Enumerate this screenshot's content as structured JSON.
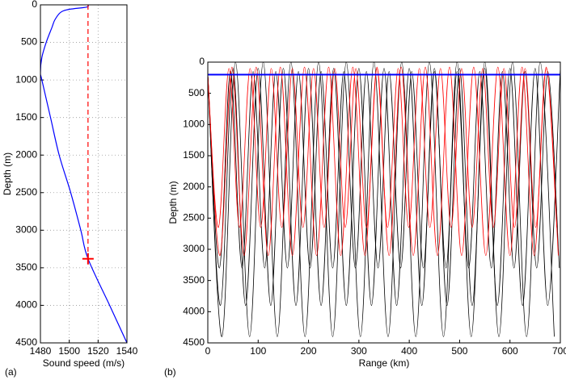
{
  "chart_data": [
    {
      "type": "line",
      "label": "(a)",
      "x_label": "Sound speed (m/s)",
      "y_label": "Depth (m)",
      "xlim": [
        1480,
        1540
      ],
      "xticks": [
        1480,
        1500,
        1520,
        1540
      ],
      "ylim": [
        0,
        4500
      ],
      "yticks": [
        0,
        500,
        1000,
        1500,
        2000,
        2500,
        3000,
        3500,
        4000,
        4500
      ],
      "y_inverted": true,
      "grid": true,
      "series": [
        {
          "color": "#0000ff",
          "x": [
            1513,
            1512,
            1500,
            1494,
            1490,
            1488,
            1484,
            1481,
            1480,
            1481,
            1487,
            1493,
            1501,
            1508,
            1513,
            1528,
            1540
          ],
          "values": [
            0,
            30,
            60,
            100,
            200,
            300,
            500,
            700,
            900,
            1000,
            1500,
            2000,
            2500,
            3000,
            3380,
            4000,
            4500
          ]
        },
        {
          "color": "#ff0000",
          "dash": true,
          "x": [
            1513,
            1513
          ],
          "values": [
            0,
            3380
          ]
        },
        {
          "color": "#ff0000",
          "marker": "plus",
          "x": [
            1513
          ],
          "values": [
            3380
          ]
        }
      ]
    },
    {
      "type": "line",
      "label": "(b)",
      "x_label": "Range (km)",
      "y_label": "Depth (m)",
      "xlim": [
        0,
        700
      ],
      "xticks": [
        0,
        100,
        200,
        300,
        400,
        500,
        600,
        700
      ],
      "ylim": [
        0,
        4500
      ],
      "yticks": [
        0,
        500,
        1000,
        1500,
        2000,
        2500,
        3000,
        3500,
        4000,
        4500
      ],
      "y_inverted": true,
      "grid": false,
      "series": [
        {
          "color": "#000000",
          "x": [
            0,
            28,
            55,
            83,
            110,
            138,
            165,
            193,
            220,
            248,
            275,
            303,
            330,
            358,
            385,
            413,
            440,
            468,
            495,
            523,
            550,
            578,
            605,
            633,
            660,
            688
          ],
          "values": [
            200,
            4400,
            0,
            4400,
            0,
            4400,
            0,
            4400,
            0,
            4400,
            0,
            4400,
            0,
            4400,
            0,
            4400,
            0,
            4400,
            0,
            4400,
            0,
            4400,
            0,
            4400,
            0,
            4400
          ]
        },
        {
          "color": "#000000",
          "x": [
            0,
            25,
            50,
            75,
            100,
            125,
            150,
            175,
            200,
            225,
            250,
            275,
            300,
            325,
            350,
            375,
            400,
            425,
            450,
            475,
            500,
            525,
            550,
            575,
            600,
            625,
            650,
            675,
            700
          ],
          "values": [
            200,
            3900,
            100,
            3900,
            100,
            3900,
            100,
            3900,
            100,
            3900,
            100,
            3900,
            100,
            3900,
            100,
            3900,
            100,
            3900,
            100,
            3900,
            100,
            3900,
            100,
            3900,
            100,
            3900,
            100,
            3900,
            100
          ]
        },
        {
          "color": "#000000",
          "x": [
            0,
            23,
            45,
            68,
            90,
            113,
            135,
            158,
            180,
            203,
            225,
            248,
            270,
            293,
            315,
            338,
            360,
            383,
            405,
            428,
            450,
            473,
            495,
            518,
            540,
            563,
            585,
            608,
            630,
            653,
            675,
            698
          ],
          "values": [
            200,
            3300,
            150,
            3300,
            150,
            3300,
            150,
            3300,
            150,
            3300,
            150,
            3300,
            150,
            3300,
            150,
            3300,
            150,
            3300,
            150,
            3300,
            150,
            3300,
            150,
            3300,
            150,
            3300,
            150,
            3300,
            150,
            3300,
            150,
            3300
          ]
        },
        {
          "color": "#ff0000",
          "x": [
            0,
            21,
            42,
            63,
            84,
            105,
            126,
            147,
            168,
            189,
            210,
            231,
            252,
            273,
            294,
            315,
            336,
            357,
            378,
            399,
            420,
            441,
            462,
            483,
            504,
            525,
            546,
            567,
            588,
            609,
            630,
            651,
            672,
            693
          ],
          "values": [
            200,
            2650,
            100,
            2650,
            100,
            2650,
            100,
            2650,
            100,
            2650,
            100,
            2650,
            100,
            2650,
            100,
            2650,
            100,
            2650,
            100,
            2650,
            100,
            2650,
            100,
            2650,
            100,
            2650,
            100,
            2650,
            100,
            2650,
            100,
            2650,
            100,
            2650
          ]
        },
        {
          "color": "#ff0000",
          "x": [
            0,
            24,
            48,
            72,
            96,
            120,
            144,
            168,
            192,
            216,
            240,
            264,
            288,
            312,
            336,
            360,
            384,
            408,
            432,
            456,
            480,
            504,
            528,
            552,
            576,
            600,
            624,
            648,
            672,
            696
          ],
          "values": [
            200,
            3100,
            80,
            3100,
            80,
            3100,
            80,
            3100,
            80,
            3100,
            80,
            3100,
            80,
            3100,
            80,
            3100,
            80,
            3100,
            80,
            3100,
            80,
            3100,
            80,
            3100,
            80,
            3100,
            80,
            3100,
            80,
            3100
          ]
        },
        {
          "color": "#0000ff",
          "width": 2,
          "x": [
            0,
            700
          ],
          "values": [
            200,
            200
          ]
        }
      ]
    }
  ]
}
